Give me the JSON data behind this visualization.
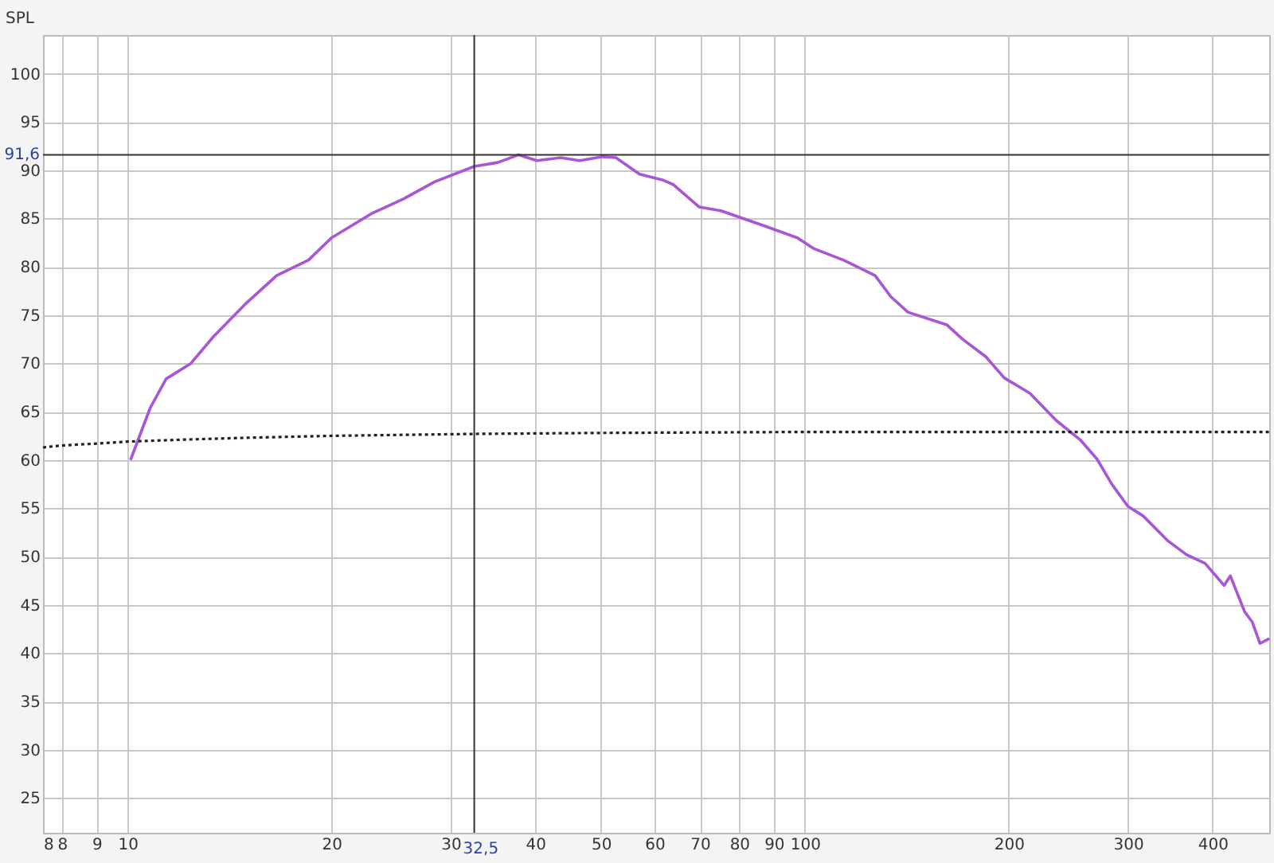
{
  "chart_data": {
    "type": "line",
    "ylabel": "SPL",
    "log": "x",
    "grid": true,
    "marker": "none",
    "xlim": [
      7.5,
      485
    ],
    "ylim": [
      21.4,
      104
    ],
    "xticks": [
      {
        "value": 7.5,
        "label": "8"
      },
      8,
      9,
      10,
      20,
      30,
      40,
      50,
      60,
      70,
      80,
      90,
      100,
      200,
      300,
      400
    ],
    "yticks": [
      25,
      30,
      35,
      40,
      45,
      50,
      55,
      60,
      65,
      70,
      75,
      80,
      85,
      90,
      95,
      100
    ],
    "series": [
      {
        "color": "#a855d6",
        "line_style": "solid",
        "x": [
          10.1,
          10.8,
          11.4,
          12.4,
          13.4,
          14.9,
          16.6,
          18.5,
          20.0,
          22.9,
          25.5,
          28.4,
          32.5,
          35.2,
          37.8,
          40.2,
          43.6,
          46.5,
          50.3,
          52.6,
          57.0,
          61.6,
          64.0,
          69.8,
          75.2,
          87.5,
          97.5,
          103,
          114,
          127,
          134,
          142,
          162,
          171,
          185,
          197,
          215,
          235,
          255,
          270,
          284,
          300,
          316,
          344,
          366,
          390,
          416,
          425,
          446,
          458,
          470,
          485
        ],
        "values": [
          60.0,
          65.4,
          68.4,
          70.0,
          72.8,
          76.1,
          79.1,
          80.7,
          83.0,
          85.5,
          87.0,
          88.8,
          90.4,
          90.8,
          91.6,
          91.0,
          91.3,
          91.0,
          91.4,
          91.3,
          89.6,
          89.0,
          88.5,
          86.2,
          85.8,
          84.2,
          83.0,
          81.9,
          80.7,
          79.1,
          76.9,
          75.3,
          74.0,
          72.5,
          70.7,
          68.5,
          66.9,
          64.1,
          62.1,
          60.1,
          57.5,
          55.2,
          54.2,
          51.6,
          50.2,
          49.3,
          47.0,
          48.0,
          44.3,
          43.2,
          41.0,
          41.5
        ]
      },
      {
        "color": "#222222",
        "line_style": "dotted",
        "x": [
          7.5,
          8,
          9,
          10,
          12,
          15,
          20,
          32.5,
          50,
          100,
          200,
          485
        ],
        "values": [
          61.3,
          61.5,
          61.7,
          61.9,
          62.1,
          62.3,
          62.5,
          62.7,
          62.8,
          62.9,
          62.9,
          62.9
        ]
      }
    ],
    "ref_lines": [
      {
        "axis": "x",
        "value": 32.5,
        "label": "32,5",
        "color": "#333333"
      },
      {
        "axis": "y",
        "value": 91.6,
        "label": "91,6",
        "color": "#333333"
      }
    ]
  }
}
